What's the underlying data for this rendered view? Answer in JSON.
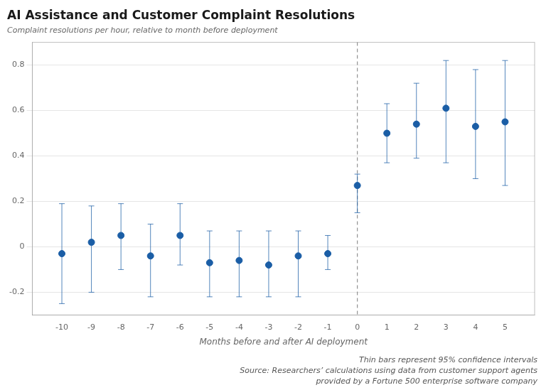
{
  "chart_data": {
    "type": "scatter",
    "title": "AI Assistance and Customer Complaint Resolutions",
    "subtitle": "Complaint resolutions per hour, relative to month before deployment",
    "xlabel": "Months before and after AI deployment",
    "footnotes": [
      "Thin bars represent 95% confidence intervals",
      "Source: Researchers’ calculations using data from customer support agents",
      "provided by a Fortune 500 enterprise software company"
    ],
    "x": [
      -10,
      -9,
      -8,
      -7,
      -6,
      -5,
      -4,
      -3,
      -2,
      -1,
      0,
      1,
      2,
      3,
      4,
      5
    ],
    "values": [
      -0.03,
      0.02,
      0.05,
      -0.04,
      0.05,
      -0.07,
      -0.06,
      -0.08,
      -0.04,
      -0.03,
      0.27,
      0.5,
      0.54,
      0.61,
      0.53,
      0.55
    ],
    "ci_low": [
      -0.25,
      -0.2,
      -0.1,
      -0.22,
      -0.08,
      -0.22,
      -0.22,
      -0.22,
      -0.22,
      -0.1,
      0.15,
      0.37,
      0.39,
      0.37,
      0.3,
      0.27
    ],
    "ci_high": [
      0.19,
      0.18,
      0.19,
      0.1,
      0.19,
      0.07,
      0.07,
      0.07,
      0.07,
      0.05,
      0.32,
      0.63,
      0.72,
      0.82,
      0.78,
      0.82
    ],
    "color": "#1b5ea6",
    "xlim": [
      -11,
      6
    ],
    "xticks": [
      -10,
      -9,
      -8,
      -7,
      -6,
      -5,
      -4,
      -3,
      -2,
      -1,
      0,
      1,
      2,
      3,
      4,
      5
    ],
    "ylim": [
      -0.3,
      0.9
    ],
    "yticks": [
      -0.2,
      0,
      0.2,
      0.4,
      0.6,
      0.8
    ],
    "vline": 0,
    "grid": true
  }
}
